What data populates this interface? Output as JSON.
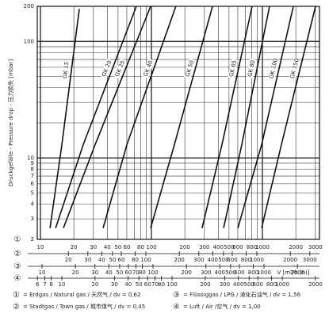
{
  "chart_data": {
    "type": "line",
    "y_label": "Druckgefälle - Pressure drop - 压力损失 [mbar]",
    "x_label": "V [m³/h (n)]",
    "log": true,
    "grid": true,
    "ylim": [
      2,
      200
    ],
    "yticks": [
      2,
      3,
      4,
      5,
      6,
      7,
      8,
      9,
      10,
      100,
      200
    ],
    "ygrid": [
      20,
      30,
      40,
      50,
      60,
      70,
      80,
      90
    ],
    "xlim": [
      9.36,
      3268
    ],
    "xticks": [
      10,
      20,
      30,
      40,
      50,
      60,
      80,
      100,
      200,
      300,
      400,
      500,
      600,
      800,
      1000,
      2000,
      3000
    ],
    "xgrid": [
      70,
      90,
      700,
      900
    ],
    "marker": "①",
    "x_scales": [
      {
        "marker": "②",
        "xlim": [
          10.5,
          3665
        ],
        "xticks": [
          20,
          30,
          40,
          50,
          60,
          80,
          100,
          200,
          300,
          400,
          500,
          600,
          800,
          1000,
          2000,
          3000
        ]
      },
      {
        "marker": "③",
        "xlim": [
          9.06,
          3162
        ],
        "xticks": [
          10,
          20,
          30,
          40,
          50,
          60,
          70,
          80,
          100,
          200,
          300,
          400,
          500,
          600,
          800,
          1000,
          2000
        ]
      },
      {
        "marker": "④",
        "xlim": [
          5.98,
          2176
        ],
        "xticks": [
          6,
          7,
          8,
          10,
          20,
          30,
          40,
          50,
          60,
          70,
          80,
          100,
          200,
          300,
          400,
          500,
          600,
          800,
          1000,
          2000
        ]
      }
    ],
    "series": [
      {
        "name": "GK 15",
        "color": "#111111",
        "x": [
          12.2,
          15.6,
          22.4
        ],
        "values": [
          2.5,
          13,
          190
        ]
      },
      {
        "name": "GK 20",
        "color": "#111111",
        "x": [
          13.7,
          24.3,
          73.1
        ],
        "values": [
          2.5,
          13,
          200
        ]
      },
      {
        "name": "GK 25",
        "color": "#111111",
        "x": [
          16.1,
          31.1,
          98.4
        ],
        "values": [
          2.5,
          13,
          200
        ]
      },
      {
        "name": "GK 40",
        "color": "#111111",
        "x": [
          36.7,
          60.1,
          166
        ],
        "values": [
          2.5,
          13,
          200
        ]
      },
      {
        "name": "GK 50",
        "color": "#111111",
        "x": [
          98.4,
          161,
          355
        ],
        "values": [
          2.5,
          13,
          200
        ]
      },
      {
        "name": "GK 65",
        "color": "#111111",
        "x": [
          286,
          432,
          807
        ],
        "values": [
          2.5,
          13,
          200
        ]
      },
      {
        "name": "GK 80",
        "color": "#111111",
        "x": [
          447,
          652,
          1159
        ],
        "values": [
          2.5,
          13,
          200
        ]
      },
      {
        "name": "GK 100",
        "color": "#111111",
        "x": [
          601,
          984,
          1900
        ],
        "values": [
          2.5,
          13,
          200
        ]
      },
      {
        "name": "GK 150",
        "color": "#111111",
        "x": [
          984,
          1483,
          3010
        ],
        "values": [
          2.5,
          13,
          200
        ]
      }
    ],
    "legend": [
      {
        "marker": "①",
        "text": "= Erdgas / Natural gas / 天然气 / dv = 0,62"
      },
      {
        "marker": "③",
        "text": "= Flüssiggas / LPG / 液化石油气 / dv = 1,56"
      },
      {
        "marker": "②",
        "text": "= Stadtgas / Town gas / 城市煤气 / dv = 0,45"
      },
      {
        "marker": "④",
        "text": "= Luft / Air /空气 / dv = 1,00"
      }
    ]
  }
}
